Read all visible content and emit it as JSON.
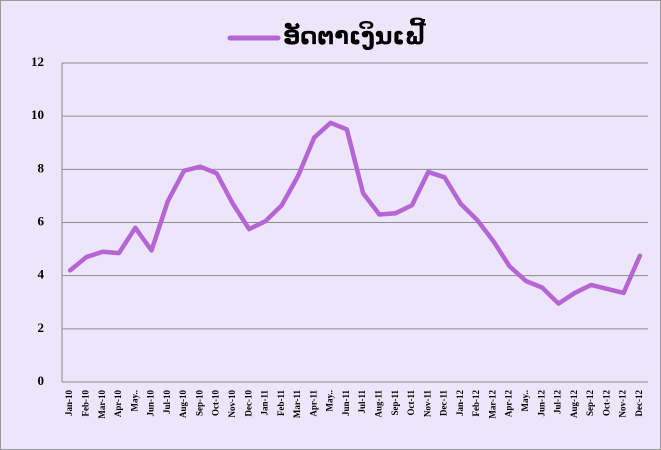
{
  "chart_data": {
    "type": "line",
    "categories": [
      "Jan-10",
      "Feb-10",
      "Mar-10",
      "Apr-10",
      "May..",
      "Jun-10",
      "Jul-10",
      "Aug-10",
      "Sep-10",
      "Oct-10",
      "Nov-10",
      "Dec-10",
      "Jan-11",
      "Feb-11",
      "Mar-11",
      "Apr-11",
      "May..",
      "Jun-11",
      "Jul-11",
      "Aug-11",
      "Sep-11",
      "Oct-11",
      "Nov-11",
      "Dec-11",
      "Jan-12",
      "Feb-12",
      "Mar-12",
      "Apr-12",
      "May..",
      "Jun-12",
      "Jul-12",
      "Aug-12",
      "Sep-12",
      "Oct-12",
      "Nov-12",
      "Dec-12"
    ],
    "series": [
      {
        "name": "ອັດຕາເງິນເຟີ້",
        "color": "#b565d4",
        "values": [
          4.2,
          4.7,
          4.9,
          4.85,
          5.8,
          4.95,
          6.8,
          7.95,
          8.1,
          7.85,
          6.7,
          5.75,
          6.05,
          6.65,
          7.75,
          9.2,
          9.75,
          9.5,
          7.1,
          6.3,
          6.35,
          6.65,
          7.9,
          7.7,
          6.7,
          6.1,
          5.3,
          4.35,
          3.8,
          3.55,
          2.95,
          3.35,
          3.65,
          3.5,
          3.35,
          4.75
        ]
      }
    ],
    "ylim": [
      0,
      12
    ],
    "yticks": [
      0,
      2,
      4,
      6,
      8,
      10,
      12
    ],
    "grid": true,
    "legend": "top"
  }
}
